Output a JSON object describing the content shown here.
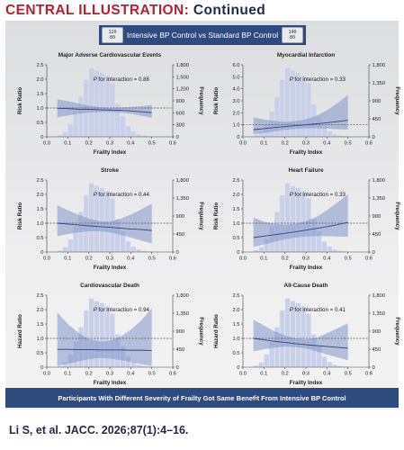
{
  "header": {
    "label": "CENTRAL ILLUSTRATION:",
    "continued": "Continued"
  },
  "banner": {
    "text": "Intensive BP Control vs Standard BP Control",
    "left_device": {
      "top": "120",
      "bottom": "80"
    },
    "right_device": {
      "top": "140",
      "bottom": "80"
    }
  },
  "footer": {
    "text": "Participants With Different Severity of Frailty Got Same Benefit From Intensive BP Control"
  },
  "citation": "Li S, et al. JACC. 2026;87(1):4–16.",
  "colors": {
    "accent_red": "#b8202f",
    "navy": "#2e4a7f",
    "band": "#7f95c9",
    "histogram": "#c8d1e9",
    "curve": "#33427a"
  },
  "chart_data": [
    {
      "type": "line",
      "title": "Major Adverse Cardiovascular Events",
      "annotation": "for interaction = 0.86",
      "ylabel": "Risk Ratio",
      "y2label": "Frequency",
      "xlabel": "Frailty Index",
      "xlim": [
        0,
        0.6
      ],
      "xticks": [
        "0.0",
        "0.1",
        "0.2",
        "0.3",
        "0.4",
        "0.5",
        "0.6"
      ],
      "ylim": [
        0,
        2.5
      ],
      "yticks": [
        "0",
        "0.5",
        "1.0",
        "1.5",
        "2.0",
        "2.5"
      ],
      "y2lim": [
        0,
        1800
      ],
      "y2ticks": [
        "0",
        "300",
        "600",
        "900",
        "1,200",
        "1,500",
        "1,800"
      ],
      "reference_line": 1.0,
      "x": [
        0.05,
        0.1,
        0.15,
        0.2,
        0.25,
        0.3,
        0.35,
        0.4,
        0.45,
        0.5
      ],
      "estimate": [
        0.99,
        0.98,
        0.96,
        0.95,
        0.94,
        0.93,
        0.92,
        0.9,
        0.87,
        0.84
      ],
      "lower": [
        0.68,
        0.74,
        0.8,
        0.84,
        0.86,
        0.86,
        0.84,
        0.8,
        0.73,
        0.66
      ],
      "upper": [
        1.3,
        1.24,
        1.16,
        1.08,
        1.03,
        1.0,
        1.02,
        1.04,
        1.06,
        1.1
      ],
      "histogram": {
        "bins": [
          0.05,
          0.075,
          0.1,
          0.125,
          0.15,
          0.175,
          0.2,
          0.225,
          0.25,
          0.275,
          0.3,
          0.325,
          0.35,
          0.375,
          0.4,
          0.425,
          0.45,
          0.475
        ],
        "counts": [
          40,
          120,
          320,
          640,
          1000,
          1420,
          1720,
          1650,
          1600,
          1520,
          1340,
          820,
          520,
          260,
          130,
          60,
          30,
          15
        ]
      }
    },
    {
      "type": "line",
      "title": "Myocardial Infarction",
      "annotation": "for interaction = 0.33",
      "ylabel": "Risk Ratio",
      "y2label": "Frequency",
      "xlabel": "Frailty Index",
      "xlim": [
        0,
        0.6
      ],
      "xticks": [
        "0.0",
        "0.1",
        "0.2",
        "0.3",
        "0.4",
        "0.5",
        "0.6"
      ],
      "ylim": [
        0,
        6.0
      ],
      "yticks": [
        "0",
        "1.0",
        "2.0",
        "3.0",
        "4.0",
        "5.0",
        "6.0"
      ],
      "y2lim": [
        0,
        1800
      ],
      "y2ticks": [
        "0",
        "450",
        "900",
        "1,350",
        "1,800"
      ],
      "reference_line": 1.0,
      "x": [
        0.05,
        0.1,
        0.15,
        0.2,
        0.25,
        0.3,
        0.35,
        0.4,
        0.45,
        0.5
      ],
      "estimate": [
        0.6,
        0.68,
        0.77,
        0.85,
        0.93,
        1.0,
        1.08,
        1.17,
        1.27,
        1.38
      ],
      "lower": [
        0.22,
        0.32,
        0.45,
        0.57,
        0.66,
        0.7,
        0.7,
        0.68,
        0.64,
        0.6
      ],
      "upper": [
        1.6,
        1.45,
        1.32,
        1.25,
        1.3,
        1.45,
        1.75,
        2.2,
        2.8,
        3.5
      ],
      "histogram": {
        "bins": [
          0.05,
          0.075,
          0.1,
          0.125,
          0.15,
          0.175,
          0.2,
          0.225,
          0.25,
          0.275,
          0.3,
          0.325,
          0.35,
          0.375,
          0.4,
          0.425,
          0.45,
          0.475
        ],
        "counts": [
          40,
          120,
          320,
          640,
          1000,
          1420,
          1720,
          1650,
          1600,
          1520,
          1340,
          820,
          520,
          260,
          130,
          60,
          30,
          15
        ]
      }
    },
    {
      "type": "line",
      "title": "Stroke",
      "annotation": "for interaction = 0.44",
      "ylabel": "Risk Ratio",
      "y2label": "Frequency",
      "xlabel": "Frailty Index",
      "xlim": [
        0,
        0.6
      ],
      "xticks": [
        "0.0",
        "0.1",
        "0.2",
        "0.3",
        "0.4",
        "0.5",
        "0.6"
      ],
      "ylim": [
        0,
        2.5
      ],
      "yticks": [
        "0",
        "0.5",
        "1.0",
        "1.5",
        "2.0",
        "2.5"
      ],
      "y2lim": [
        0,
        1800
      ],
      "y2ticks": [
        "0",
        "450",
        "900",
        "1,350",
        "1,800"
      ],
      "reference_line": 1.0,
      "x": [
        0.05,
        0.1,
        0.15,
        0.2,
        0.25,
        0.3,
        0.35,
        0.4,
        0.45,
        0.5
      ],
      "estimate": [
        1.0,
        0.97,
        0.94,
        0.91,
        0.88,
        0.86,
        0.83,
        0.8,
        0.78,
        0.75
      ],
      "lower": [
        0.55,
        0.62,
        0.68,
        0.72,
        0.72,
        0.68,
        0.6,
        0.5,
        0.4,
        0.3
      ],
      "upper": [
        1.62,
        1.45,
        1.3,
        1.16,
        1.07,
        1.06,
        1.15,
        1.3,
        1.48,
        1.68
      ],
      "histogram": {
        "bins": [
          0.05,
          0.075,
          0.1,
          0.125,
          0.15,
          0.175,
          0.2,
          0.225,
          0.25,
          0.275,
          0.3,
          0.325,
          0.35,
          0.375,
          0.4,
          0.425,
          0.45,
          0.475
        ],
        "counts": [
          40,
          120,
          320,
          640,
          1000,
          1420,
          1720,
          1650,
          1600,
          1520,
          1340,
          820,
          520,
          260,
          130,
          60,
          30,
          15
        ]
      }
    },
    {
      "type": "line",
      "title": "Heart Failure",
      "annotation": "for interaction = 0.33",
      "ylabel": "Risk Ratio",
      "y2label": "Frequency",
      "xlabel": "Frailty Index",
      "xlim": [
        0,
        0.6
      ],
      "xticks": [
        "0.0",
        "0.1",
        "0.2",
        "0.3",
        "0.4",
        "0.5",
        "0.6"
      ],
      "ylim": [
        0,
        2.5
      ],
      "yticks": [
        "0",
        "0.5",
        "1.0",
        "1.5",
        "2.0",
        "2.5"
      ],
      "y2lim": [
        0,
        1800
      ],
      "y2ticks": [
        "0",
        "450",
        "900",
        "1,350",
        "1,800"
      ],
      "reference_line": 1.0,
      "x": [
        0.05,
        0.1,
        0.15,
        0.2,
        0.25,
        0.3,
        0.35,
        0.4,
        0.45,
        0.5
      ],
      "estimate": [
        0.5,
        0.55,
        0.6,
        0.65,
        0.7,
        0.76,
        0.82,
        0.88,
        0.95,
        1.03
      ],
      "lower": [
        0.18,
        0.26,
        0.35,
        0.44,
        0.5,
        0.54,
        0.55,
        0.55,
        0.54,
        0.53
      ],
      "upper": [
        1.2,
        1.05,
        0.98,
        0.95,
        0.98,
        1.07,
        1.22,
        1.45,
        1.72,
        2.0
      ],
      "histogram": {
        "bins": [
          0.05,
          0.075,
          0.1,
          0.125,
          0.15,
          0.175,
          0.2,
          0.225,
          0.25,
          0.275,
          0.3,
          0.325,
          0.35,
          0.375,
          0.4,
          0.425,
          0.45,
          0.475
        ],
        "counts": [
          40,
          120,
          320,
          640,
          1000,
          1420,
          1720,
          1650,
          1600,
          1520,
          1340,
          820,
          520,
          260,
          130,
          60,
          30,
          15
        ]
      }
    },
    {
      "type": "line",
      "title": "Cardiovascular Death",
      "annotation": "for interaction = 0.94",
      "ylabel": "Hazard Ratio",
      "y2label": "Frequency",
      "xlabel": "Frailty Index",
      "xlim": [
        0,
        0.6
      ],
      "xticks": [
        "0.0",
        "0.1",
        "0.2",
        "0.3",
        "0.4",
        "0.5",
        "0.6"
      ],
      "ylim": [
        0,
        2.5
      ],
      "yticks": [
        "0",
        "0.5",
        "1.0",
        "1.5",
        "2.0",
        "2.5"
      ],
      "y2lim": [
        0,
        1800
      ],
      "y2ticks": [
        "0",
        "450",
        "900",
        "1,350",
        "1,800"
      ],
      "reference_line": 1.0,
      "x": [
        0.05,
        0.1,
        0.15,
        0.2,
        0.25,
        0.3,
        0.35,
        0.4,
        0.45,
        0.5
      ],
      "estimate": [
        0.62,
        0.62,
        0.61,
        0.61,
        0.6,
        0.6,
        0.6,
        0.59,
        0.59,
        0.58
      ],
      "lower": [
        0.05,
        0.12,
        0.2,
        0.28,
        0.32,
        0.3,
        0.25,
        0.18,
        0.1,
        0.04
      ],
      "upper": [
        1.9,
        1.5,
        1.2,
        0.98,
        0.9,
        0.92,
        1.05,
        1.3,
        1.62,
        2.05
      ],
      "histogram": {
        "bins": [
          0.05,
          0.075,
          0.1,
          0.125,
          0.15,
          0.175,
          0.2,
          0.225,
          0.25,
          0.275,
          0.3,
          0.325,
          0.35,
          0.375,
          0.4,
          0.425,
          0.45,
          0.475
        ],
        "counts": [
          40,
          120,
          320,
          640,
          1000,
          1420,
          1720,
          1650,
          1600,
          1520,
          1340,
          820,
          520,
          260,
          130,
          60,
          30,
          15
        ]
      }
    },
    {
      "type": "line",
      "title": "All-Cause Death",
      "annotation": "for interaction = 0.41",
      "ylabel": "Hazard Ratio",
      "y2label": "Frequency",
      "xlabel": "Frailty Index",
      "xlim": [
        0,
        0.6
      ],
      "xticks": [
        "0.0",
        "0.1",
        "0.2",
        "0.3",
        "0.4",
        "0.5",
        "0.6"
      ],
      "ylim": [
        0,
        2.5
      ],
      "yticks": [
        "0",
        "0.5",
        "1.0",
        "1.5",
        "2.0",
        "2.5"
      ],
      "y2lim": [
        0,
        1800
      ],
      "y2ticks": [
        "0",
        "450",
        "900",
        "1,350",
        "1,800"
      ],
      "reference_line": 1.0,
      "x": [
        0.05,
        0.1,
        0.15,
        0.2,
        0.25,
        0.3,
        0.35,
        0.4,
        0.45,
        0.5
      ],
      "estimate": [
        1.0,
        0.95,
        0.9,
        0.86,
        0.82,
        0.78,
        0.75,
        0.72,
        0.69,
        0.66
      ],
      "lower": [
        0.55,
        0.62,
        0.68,
        0.72,
        0.7,
        0.65,
        0.55,
        0.44,
        0.34,
        0.24
      ],
      "upper": [
        1.65,
        1.45,
        1.25,
        1.1,
        1.0,
        0.96,
        1.02,
        1.18,
        1.35,
        1.52
      ],
      "histogram": {
        "bins": [
          0.05,
          0.075,
          0.1,
          0.125,
          0.15,
          0.175,
          0.2,
          0.225,
          0.25,
          0.275,
          0.3,
          0.325,
          0.35,
          0.375,
          0.4,
          0.425,
          0.45,
          0.475
        ],
        "counts": [
          40,
          120,
          320,
          640,
          1000,
          1420,
          1720,
          1650,
          1600,
          1520,
          1340,
          820,
          520,
          260,
          130,
          60,
          30,
          15
        ]
      }
    }
  ]
}
